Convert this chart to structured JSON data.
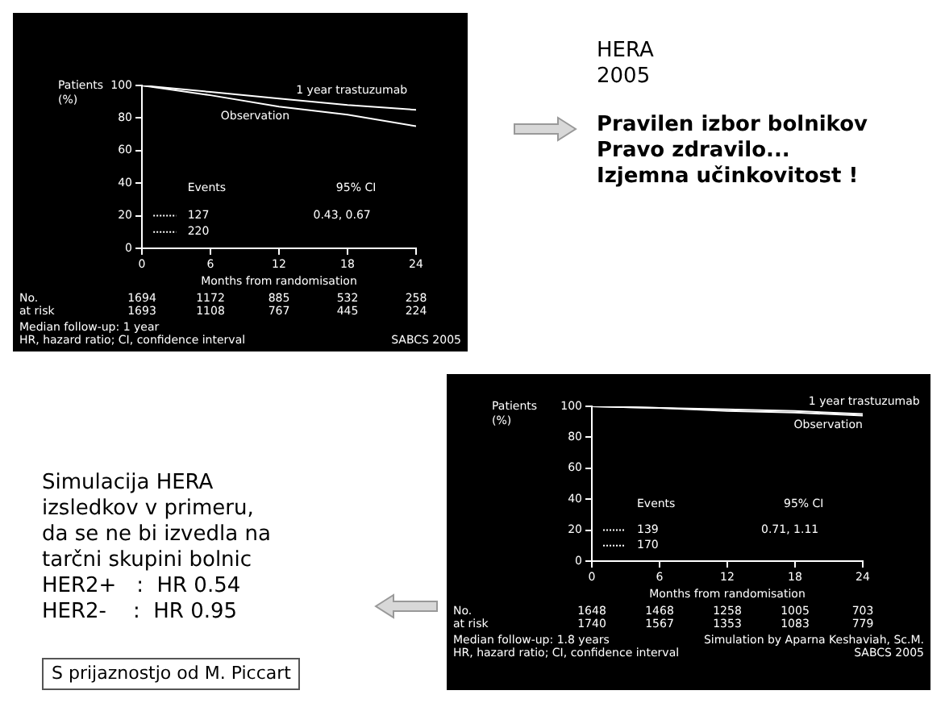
{
  "chart_data": [
    {
      "type": "line",
      "ylabel": "Patients (%)",
      "xlabel": "Months from randomisation",
      "x": [
        0,
        6,
        12,
        18,
        24
      ],
      "xlim": [
        0,
        24
      ],
      "xticks": [
        0,
        6,
        12,
        18,
        24
      ],
      "ylim": [
        0,
        100
      ],
      "yticks": [
        0,
        20,
        40,
        60,
        80,
        100
      ],
      "series": [
        {
          "name": "1 year trastuzumab",
          "color": "#ffffff",
          "values": [
            100,
            96,
            92,
            88,
            85
          ]
        },
        {
          "name": "Observation",
          "color": "#ffffff",
          "values": [
            100,
            94,
            87,
            82,
            75
          ]
        }
      ],
      "annotations": [
        "Events",
        "95% CI",
        "127",
        "0.43, 0.67",
        "220",
        "No.",
        "at risk",
        "1694",
        "1172",
        "885",
        "532",
        "258",
        "1693",
        "1108",
        "767",
        "445",
        "224",
        "Median follow-up: 1 year",
        "HR, hazard ratio; CI, confidence interval",
        "SABCS 2005"
      ]
    },
    {
      "type": "other",
      "annotations": [
        "HERA",
        "2005",
        "Pravilen izbor bolnikov",
        "Pravo zdravilo...",
        "Izjemna učinkovitost !"
      ]
    },
    {
      "type": "other",
      "annotations": [
        "Simulacija HERA",
        "izsledkov v primeru,",
        "da se ne bi izvedla na",
        "tarčni skupini bolnic",
        "HER2+   :  HR 0.54",
        "HER2-    :  HR 0.95",
        "S prijaznostjo od M. Piccart"
      ]
    },
    {
      "type": "line",
      "ylabel": "Patients (%)",
      "xlabel": "Months from randomisation",
      "x": [
        0,
        6,
        12,
        18,
        24
      ],
      "xlim": [
        0,
        24
      ],
      "xticks": [
        0,
        6,
        12,
        18,
        24
      ],
      "ylim": [
        0,
        100
      ],
      "yticks": [
        0,
        20,
        40,
        60,
        80,
        100
      ],
      "series": [
        {
          "name": "1 year trastuzumab",
          "color": "#ffffff",
          "values": [
            100,
            99,
            98,
            97,
            95
          ]
        },
        {
          "name": "Observation",
          "color": "#ffffff",
          "values": [
            100,
            99,
            97,
            96,
            94
          ]
        }
      ],
      "annotations": [
        "Events",
        "95% CI",
        "139",
        "0.71, 1.11",
        "170",
        "No.",
        "at risk",
        "1648",
        "1468",
        "1258",
        "1005",
        "703",
        "1740",
        "1567",
        "1353",
        "1083",
        "779",
        "Median follow-up: 1.8 years",
        "HR, hazard ratio; CI, confidence interval",
        "Simulation by Aparna Keshaviah, Sc.M.",
        "SABCS 2005"
      ]
    }
  ]
}
